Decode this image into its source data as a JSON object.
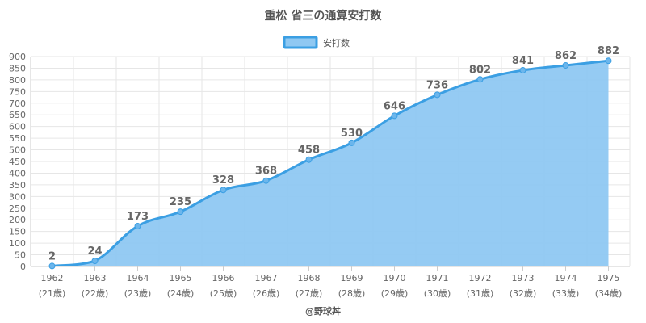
{
  "chart_data": {
    "type": "area",
    "title": "重松 省三の通算安打数",
    "credit": "@野球丼",
    "categories": [
      "1962",
      "1963",
      "1964",
      "1965",
      "1966",
      "1967",
      "1968",
      "1969",
      "1970",
      "1971",
      "1972",
      "1973",
      "1974",
      "1975"
    ],
    "sub_labels": [
      "(21歳)",
      "(22歳)",
      "(23歳)",
      "(24歳)",
      "(25歳)",
      "(26歳)",
      "(27歳)",
      "(28歳)",
      "(29歳)",
      "(30歳)",
      "(31歳)",
      "(32歳)",
      "(33歳)",
      "(34歳)"
    ],
    "series": [
      {
        "name": "安打数",
        "values": [
          2,
          24,
          173,
          235,
          328,
          368,
          458,
          530,
          646,
          736,
          802,
          841,
          862,
          882
        ]
      }
    ],
    "ylim": [
      0,
      900
    ],
    "y_step": 50,
    "grid": true,
    "legend": "top-center",
    "colors": {
      "line": "#3b9fe3",
      "fill": "#8fc8f2",
      "grid": "#e6e6e6",
      "axis": "#cccccc"
    }
  }
}
